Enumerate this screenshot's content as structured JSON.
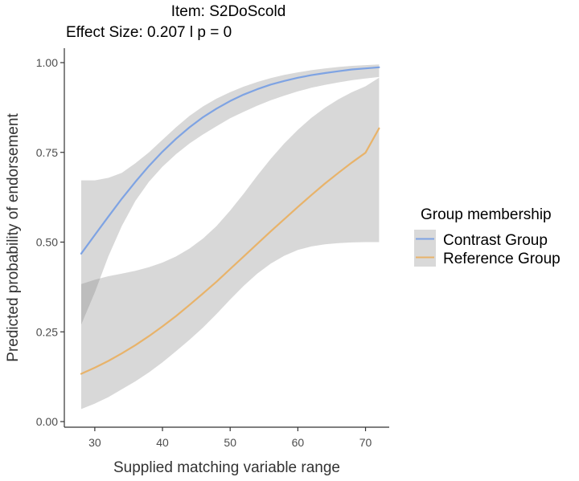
{
  "chart_data": {
    "type": "line",
    "title_line1": "Item:  S2DoScold",
    "title_line2": "Effect Size:  0.207  l p =  0",
    "xlabel": "Supplied matching variable range",
    "ylabel": "Predicted probability of endorsement",
    "xlim": [
      25.5,
      73.5
    ],
    "ylim": [
      0,
      1
    ],
    "x_ticks": [
      30,
      40,
      50,
      60,
      70
    ],
    "x_tick_labels": [
      "30",
      "40",
      "50",
      "60",
      "70"
    ],
    "y_ticks": [
      0,
      0.25,
      0.5,
      0.75,
      1
    ],
    "y_tick_labels": [
      "0.00",
      "0.25",
      "0.50",
      "0.75",
      "1.00"
    ],
    "grid": false,
    "legend": {
      "title": "Group membership",
      "position": "right",
      "entries": [
        "Contrast Group",
        "Reference Group"
      ]
    },
    "series": [
      {
        "name": "Contrast Group",
        "color": "#7ea3e3",
        "x": [
          28,
          30,
          32,
          34,
          36,
          38,
          40,
          42,
          44,
          46,
          48,
          50,
          52,
          54,
          56,
          58,
          60,
          62,
          64,
          66,
          68,
          70,
          72
        ],
        "y": [
          0.468,
          0.52,
          0.571,
          0.621,
          0.668,
          0.712,
          0.752,
          0.788,
          0.82,
          0.848,
          0.872,
          0.893,
          0.911,
          0.926,
          0.939,
          0.949,
          0.958,
          0.965,
          0.971,
          0.976,
          0.981,
          0.984,
          0.987
        ],
        "lower": [
          0.27,
          0.36,
          0.46,
          0.545,
          0.615,
          0.668,
          0.71,
          0.745,
          0.775,
          0.8,
          0.823,
          0.845,
          0.863,
          0.88,
          0.895,
          0.908,
          0.92,
          0.93,
          0.938,
          0.945,
          0.951,
          0.956,
          0.96
        ],
        "upper": [
          0.672,
          0.672,
          0.679,
          0.693,
          0.72,
          0.75,
          0.785,
          0.82,
          0.852,
          0.878,
          0.9,
          0.918,
          0.933,
          0.946,
          0.957,
          0.966,
          0.973,
          0.979,
          0.984,
          0.988,
          0.991,
          0.993,
          0.995
        ]
      },
      {
        "name": "Reference Group",
        "color": "#e8b36a",
        "x": [
          28,
          30,
          32,
          34,
          36,
          38,
          40,
          42,
          44,
          46,
          48,
          50,
          52,
          54,
          56,
          58,
          60,
          62,
          64,
          66,
          68,
          70,
          72
        ],
        "y": [
          0.133,
          0.15,
          0.169,
          0.19,
          0.213,
          0.238,
          0.265,
          0.294,
          0.325,
          0.357,
          0.39,
          0.425,
          0.46,
          0.495,
          0.53,
          0.564,
          0.598,
          0.631,
          0.663,
          0.693,
          0.722,
          0.749,
          0.817
        ],
        "lower": [
          0.035,
          0.05,
          0.068,
          0.09,
          0.112,
          0.137,
          0.165,
          0.196,
          0.228,
          0.262,
          0.3,
          0.34,
          0.378,
          0.412,
          0.44,
          0.462,
          0.478,
          0.488,
          0.494,
          0.497,
          0.499,
          0.5,
          0.5
        ],
        "upper": [
          0.383,
          0.395,
          0.405,
          0.412,
          0.42,
          0.43,
          0.443,
          0.46,
          0.482,
          0.51,
          0.545,
          0.588,
          0.635,
          0.685,
          0.732,
          0.775,
          0.813,
          0.846,
          0.874,
          0.898,
          0.918,
          0.934,
          0.958
        ]
      }
    ]
  }
}
